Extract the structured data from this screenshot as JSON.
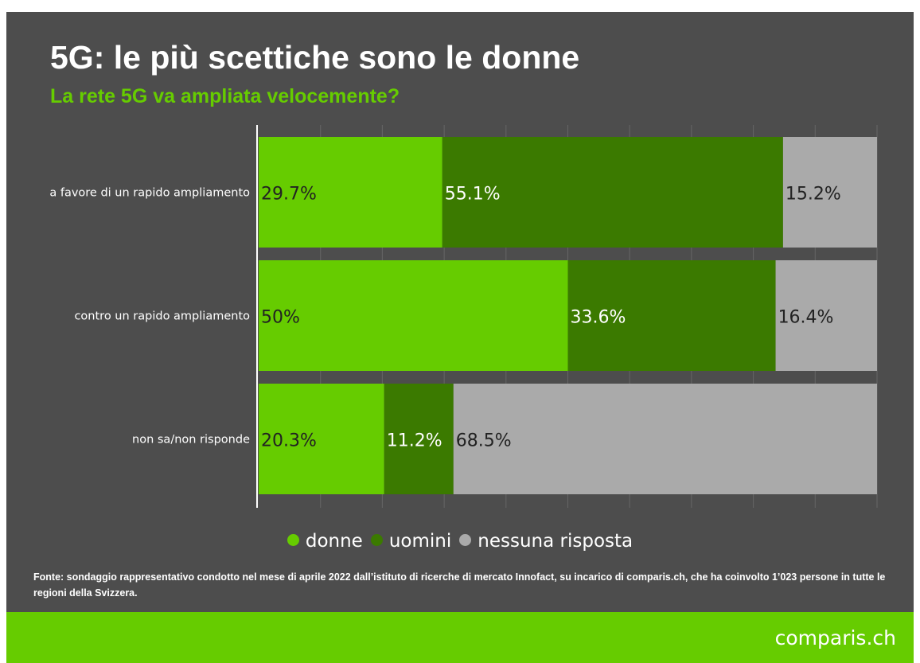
{
  "header": {
    "title": "5G: le più scettiche sono le donne",
    "subtitle": "La rete 5G va ampliata velocemente?"
  },
  "chart_data": {
    "type": "bar",
    "orientation": "horizontal",
    "stacked": true,
    "categories": [
      "a favore di un rapido ampliamento",
      "contro un rapido ampliamento",
      "non sa/non risponde"
    ],
    "series": [
      {
        "name": "donne",
        "values": [
          29.7,
          50,
          20.3
        ],
        "labels": [
          "29.7%",
          "50%",
          "20.3%"
        ],
        "color": "#66cc00"
      },
      {
        "name": "uomini",
        "values": [
          55.1,
          33.6,
          11.2
        ],
        "labels": [
          "55.1%",
          "33.6%",
          "11.2%"
        ],
        "color": "#3b7a00"
      },
      {
        "name": "nessuna risposta",
        "values": [
          15.2,
          16.4,
          68.5
        ],
        "labels": [
          "15.2%",
          "16.4%",
          "68.5%"
        ],
        "color": "#aaaaaa"
      }
    ],
    "xlim": [
      0,
      100
    ],
    "grid": true,
    "legend_position": "bottom"
  },
  "source": "Fonte: sondaggio rappresentativo condotto nel mese di aprile 2022 dall’istituto di ricerche di mercato Innofact, su incarico di comparis.ch, che ha coinvolto 1’023 persone in tutte le regioni della Svizzera.",
  "footer": {
    "logo": "comparis.ch",
    "color": "#66cc00"
  },
  "colors": {
    "background": "#4d4d4d",
    "text": "#ffffff",
    "accent": "#66cc00",
    "label_text": "#222222"
  }
}
